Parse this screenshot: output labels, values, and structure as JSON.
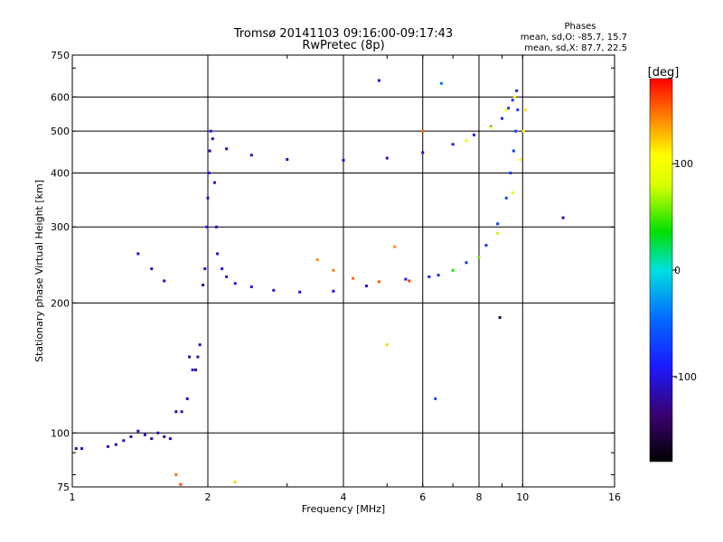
{
  "chart_data": {
    "type": "scatter",
    "title": "Tromsø 20141103 09:16:00-09:17:43",
    "subtitle": "RwPretec (8p)",
    "xlabel": "Frequency [MHz]",
    "ylabel": "Stationary phase Virtual Height [km]",
    "x_scale": "log",
    "y_scale": "log",
    "xlim": [
      1,
      16
    ],
    "ylim": [
      75,
      750
    ],
    "x_ticks": [
      "1",
      "2",
      "4",
      "6",
      "8",
      "10",
      "16"
    ],
    "x_tick_values": [
      1,
      2,
      4,
      6,
      8,
      10,
      16
    ],
    "y_ticks": [
      "75",
      "100",
      "200",
      "300",
      "400",
      "500",
      "600",
      "750"
    ],
    "y_tick_values": [
      75,
      100,
      200,
      300,
      400,
      500,
      600,
      750
    ],
    "grid": true,
    "phase_info": {
      "title": "Phases",
      "line_o": "mean, sd,O: -85.7, 15.7",
      "line_x": "mean, sd,X: 87.7, 22.5"
    },
    "colorbar": {
      "label": "[deg]",
      "range": [
        -180,
        180
      ],
      "ticks": [
        "100",
        "0",
        "-100"
      ],
      "tick_values": [
        100,
        0,
        -100
      ]
    },
    "series": [
      {
        "points": [
          [
            1.02,
            92,
            -120
          ],
          [
            1.05,
            92,
            -120
          ],
          [
            1.2,
            93,
            -110
          ],
          [
            1.25,
            94,
            -120
          ],
          [
            1.3,
            96,
            -115
          ],
          [
            1.35,
            98,
            -110
          ],
          [
            1.4,
            101,
            -120
          ],
          [
            1.45,
            99,
            -110
          ],
          [
            1.5,
            97,
            -120
          ],
          [
            1.55,
            100,
            -110
          ],
          [
            1.6,
            98,
            -120
          ],
          [
            1.65,
            97,
            -110
          ],
          [
            1.7,
            112,
            -120
          ],
          [
            1.75,
            112,
            -110
          ],
          [
            1.8,
            120,
            -110
          ],
          [
            1.82,
            150,
            -120
          ],
          [
            1.85,
            140,
            -110
          ],
          [
            1.88,
            140,
            -120
          ],
          [
            1.9,
            150,
            -110
          ],
          [
            1.92,
            160,
            -120
          ],
          [
            1.95,
            220,
            -120
          ],
          [
            1.97,
            240,
            -110
          ],
          [
            1.99,
            300,
            -100
          ],
          [
            2.0,
            350,
            -110
          ],
          [
            2.01,
            400,
            -100
          ],
          [
            2.02,
            450,
            -110
          ],
          [
            2.03,
            500,
            -100
          ],
          [
            2.05,
            480,
            -110
          ],
          [
            2.07,
            380,
            -100
          ],
          [
            2.09,
            300,
            -110
          ],
          [
            2.1,
            260,
            -100
          ],
          [
            2.15,
            240,
            -110
          ],
          [
            2.2,
            230,
            -100
          ],
          [
            2.3,
            222,
            -100
          ],
          [
            2.5,
            218,
            -100
          ],
          [
            2.8,
            214,
            -100
          ],
          [
            3.2,
            212,
            -100
          ],
          [
            3.8,
            213,
            -100
          ],
          [
            4.5,
            219,
            -95
          ],
          [
            5.5,
            227,
            -90
          ],
          [
            6.5,
            232,
            -80
          ],
          [
            7.5,
            248,
            -75
          ],
          [
            8.3,
            272,
            -70
          ],
          [
            8.8,
            305,
            -70
          ],
          [
            9.2,
            350,
            -70
          ],
          [
            9.4,
            400,
            -70
          ],
          [
            9.55,
            450,
            -70
          ],
          [
            9.65,
            500,
            -70
          ],
          [
            9.75,
            560,
            -70
          ],
          [
            1.4,
            260,
            -110
          ],
          [
            1.5,
            240,
            -110
          ],
          [
            1.6,
            225,
            -110
          ],
          [
            2.2,
            455,
            -110
          ],
          [
            2.5,
            440,
            -110
          ],
          [
            3.0,
            430,
            -110
          ],
          [
            4.0,
            428,
            -110
          ],
          [
            5.0,
            433,
            -105
          ],
          [
            6.0,
            446,
            -100
          ],
          [
            7.0,
            466,
            -95
          ],
          [
            7.8,
            490,
            -90
          ],
          [
            8.5,
            512,
            -85
          ],
          [
            9.0,
            535,
            -80
          ],
          [
            9.3,
            565,
            -80
          ],
          [
            9.5,
            590,
            -80
          ],
          [
            9.7,
            620,
            -80
          ],
          [
            4.8,
            655,
            -110
          ],
          [
            6.6,
            645,
            -40
          ],
          [
            12.3,
            315,
            -110
          ],
          [
            6.4,
            120,
            -60
          ],
          [
            5.0,
            160,
            120
          ],
          [
            1.7,
            80,
            150
          ],
          [
            1.74,
            76,
            160
          ],
          [
            2.3,
            77,
            120
          ]
        ]
      },
      {
        "points": [
          [
            3.5,
            252,
            140
          ],
          [
            3.8,
            238,
            145
          ],
          [
            4.2,
            228,
            150
          ],
          [
            4.8,
            224,
            155
          ],
          [
            5.6,
            225,
            165
          ],
          [
            6.2,
            230,
            -90
          ],
          [
            7.0,
            238,
            40
          ],
          [
            8.0,
            255,
            55
          ],
          [
            8.8,
            290,
            75
          ],
          [
            9.5,
            360,
            90
          ],
          [
            9.9,
            430,
            105
          ],
          [
            10.05,
            500,
            110
          ],
          [
            10.15,
            560,
            115
          ],
          [
            7.5,
            475,
            90
          ],
          [
            8.5,
            510,
            95
          ],
          [
            9.2,
            560,
            100
          ],
          [
            9.6,
            600,
            100
          ],
          [
            5.2,
            270,
            140
          ],
          [
            6.0,
            500,
            150
          ],
          [
            8.9,
            185,
            -150
          ]
        ]
      }
    ]
  }
}
